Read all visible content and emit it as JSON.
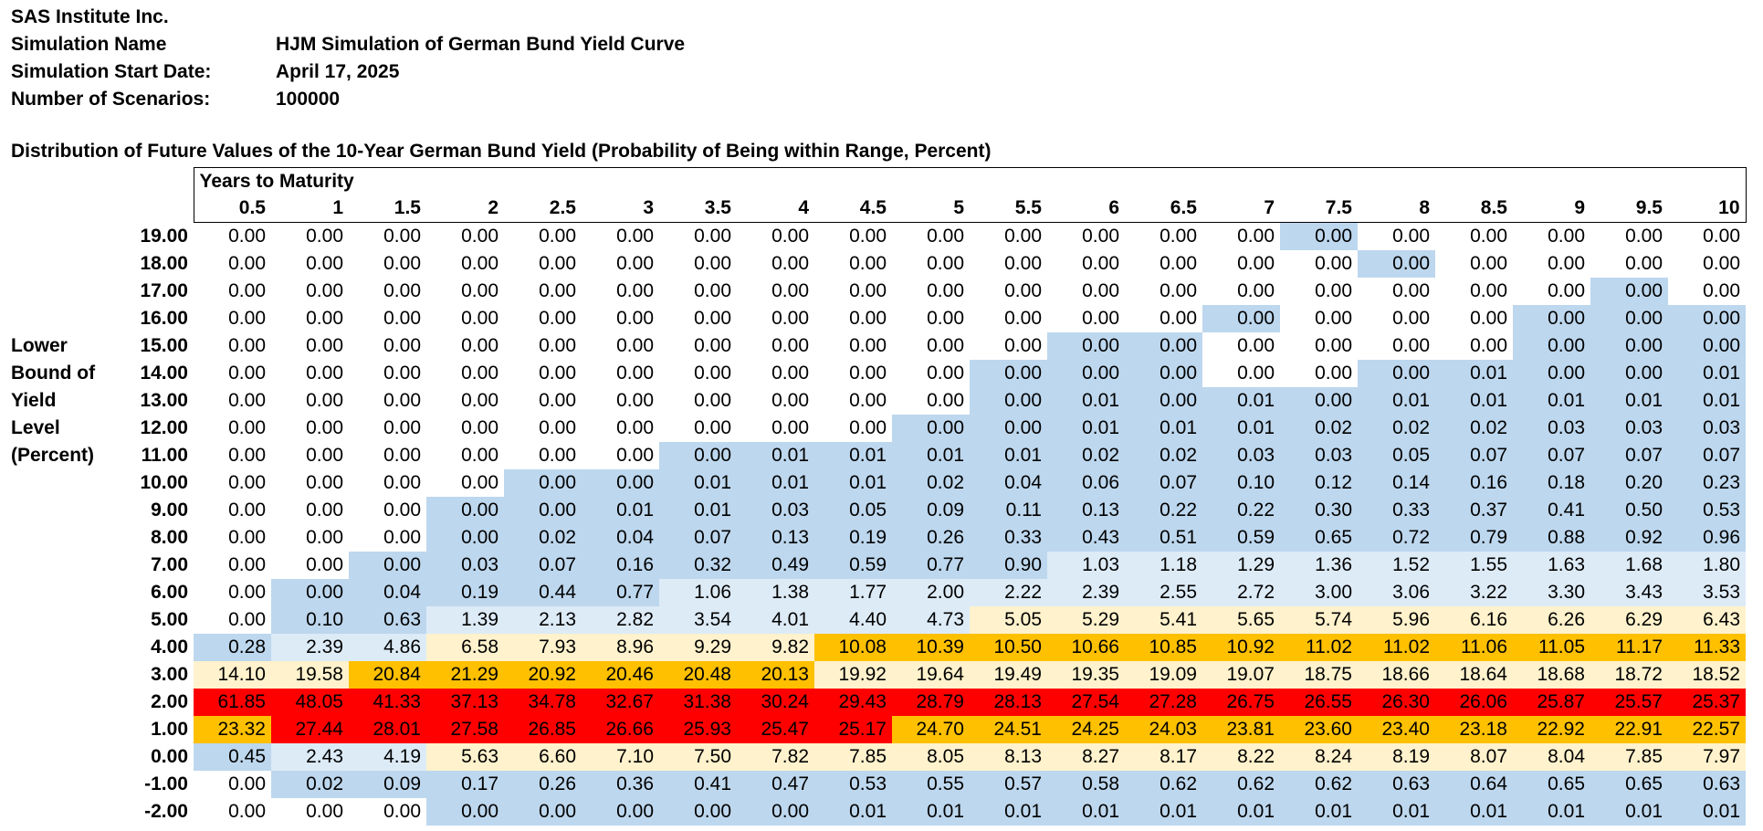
{
  "header": {
    "company": "SAS Institute Inc.",
    "fields": [
      {
        "label": "Simulation Name",
        "value": "HJM Simulation of German Bund Yield Curve"
      },
      {
        "label": "Simulation Start Date:",
        "value": "April 17, 2025"
      },
      {
        "label": "Number of Scenarios:",
        "value": "100000"
      }
    ]
  },
  "table_title": "Distribution of Future Values of the 10-Year German Bund Yield (Probability of Being within Range, Percent)",
  "column_group_label": "Years to Maturity",
  "row_axis_label": [
    "Lower",
    "Bound of",
    "Yield",
    "Level",
    "(Percent)"
  ],
  "maturities": [
    "0.5",
    "1",
    "1.5",
    "2",
    "2.5",
    "3",
    "3.5",
    "4",
    "4.5",
    "5",
    "5.5",
    "6",
    "6.5",
    "7",
    "7.5",
    "8",
    "8.5",
    "9",
    "9.5",
    "10"
  ],
  "legend_colors": {
    "c0": "#ffffff",
    "c1": "#bdd7ee",
    "c2": "#ddebf7",
    "c3": "#fff2cc",
    "c4": "#ffc000",
    "c5": "#ff0000"
  },
  "rows": [
    {
      "label": "19.00",
      "values": [
        "0.00",
        "0.00",
        "0.00",
        "0.00",
        "0.00",
        "0.00",
        "0.00",
        "0.00",
        "0.00",
        "0.00",
        "0.00",
        "0.00",
        "0.00",
        "0.00",
        "0.00",
        "0.00",
        "0.00",
        "0.00",
        "0.00",
        "0.00"
      ],
      "colors": [
        0,
        0,
        0,
        0,
        0,
        0,
        0,
        0,
        0,
        0,
        0,
        0,
        0,
        0,
        1,
        0,
        0,
        0,
        0,
        0
      ]
    },
    {
      "label": "18.00",
      "values": [
        "0.00",
        "0.00",
        "0.00",
        "0.00",
        "0.00",
        "0.00",
        "0.00",
        "0.00",
        "0.00",
        "0.00",
        "0.00",
        "0.00",
        "0.00",
        "0.00",
        "0.00",
        "0.00",
        "0.00",
        "0.00",
        "0.00",
        "0.00"
      ],
      "colors": [
        0,
        0,
        0,
        0,
        0,
        0,
        0,
        0,
        0,
        0,
        0,
        0,
        0,
        0,
        0,
        1,
        0,
        0,
        0,
        0
      ]
    },
    {
      "label": "17.00",
      "values": [
        "0.00",
        "0.00",
        "0.00",
        "0.00",
        "0.00",
        "0.00",
        "0.00",
        "0.00",
        "0.00",
        "0.00",
        "0.00",
        "0.00",
        "0.00",
        "0.00",
        "0.00",
        "0.00",
        "0.00",
        "0.00",
        "0.00",
        "0.00"
      ],
      "colors": [
        0,
        0,
        0,
        0,
        0,
        0,
        0,
        0,
        0,
        0,
        0,
        0,
        0,
        0,
        0,
        0,
        0,
        0,
        1,
        0
      ]
    },
    {
      "label": "16.00",
      "values": [
        "0.00",
        "0.00",
        "0.00",
        "0.00",
        "0.00",
        "0.00",
        "0.00",
        "0.00",
        "0.00",
        "0.00",
        "0.00",
        "0.00",
        "0.00",
        "0.00",
        "0.00",
        "0.00",
        "0.00",
        "0.00",
        "0.00",
        "0.00"
      ],
      "colors": [
        0,
        0,
        0,
        0,
        0,
        0,
        0,
        0,
        0,
        0,
        0,
        0,
        0,
        1,
        0,
        0,
        0,
        1,
        1,
        1
      ]
    },
    {
      "label": "15.00",
      "values": [
        "0.00",
        "0.00",
        "0.00",
        "0.00",
        "0.00",
        "0.00",
        "0.00",
        "0.00",
        "0.00",
        "0.00",
        "0.00",
        "0.00",
        "0.00",
        "0.00",
        "0.00",
        "0.00",
        "0.00",
        "0.00",
        "0.00",
        "0.00"
      ],
      "colors": [
        0,
        0,
        0,
        0,
        0,
        0,
        0,
        0,
        0,
        0,
        0,
        1,
        1,
        0,
        0,
        0,
        0,
        1,
        1,
        1
      ]
    },
    {
      "label": "14.00",
      "values": [
        "0.00",
        "0.00",
        "0.00",
        "0.00",
        "0.00",
        "0.00",
        "0.00",
        "0.00",
        "0.00",
        "0.00",
        "0.00",
        "0.00",
        "0.00",
        "0.00",
        "0.00",
        "0.00",
        "0.01",
        "0.00",
        "0.00",
        "0.01"
      ],
      "colors": [
        0,
        0,
        0,
        0,
        0,
        0,
        0,
        0,
        0,
        0,
        1,
        1,
        1,
        0,
        0,
        1,
        1,
        1,
        1,
        1
      ]
    },
    {
      "label": "13.00",
      "values": [
        "0.00",
        "0.00",
        "0.00",
        "0.00",
        "0.00",
        "0.00",
        "0.00",
        "0.00",
        "0.00",
        "0.00",
        "0.00",
        "0.01",
        "0.00",
        "0.01",
        "0.00",
        "0.01",
        "0.01",
        "0.01",
        "0.01",
        "0.01"
      ],
      "colors": [
        0,
        0,
        0,
        0,
        0,
        0,
        0,
        0,
        0,
        0,
        1,
        1,
        1,
        1,
        1,
        1,
        1,
        1,
        1,
        1
      ]
    },
    {
      "label": "12.00",
      "values": [
        "0.00",
        "0.00",
        "0.00",
        "0.00",
        "0.00",
        "0.00",
        "0.00",
        "0.00",
        "0.00",
        "0.00",
        "0.00",
        "0.01",
        "0.01",
        "0.01",
        "0.02",
        "0.02",
        "0.02",
        "0.03",
        "0.03",
        "0.03"
      ],
      "colors": [
        0,
        0,
        0,
        0,
        0,
        0,
        0,
        0,
        0,
        1,
        1,
        1,
        1,
        1,
        1,
        1,
        1,
        1,
        1,
        1
      ]
    },
    {
      "label": "11.00",
      "values": [
        "0.00",
        "0.00",
        "0.00",
        "0.00",
        "0.00",
        "0.00",
        "0.00",
        "0.01",
        "0.01",
        "0.01",
        "0.01",
        "0.02",
        "0.02",
        "0.03",
        "0.03",
        "0.05",
        "0.07",
        "0.07",
        "0.07",
        "0.07"
      ],
      "colors": [
        0,
        0,
        0,
        0,
        0,
        0,
        1,
        1,
        1,
        1,
        1,
        1,
        1,
        1,
        1,
        1,
        1,
        1,
        1,
        1
      ]
    },
    {
      "label": "10.00",
      "values": [
        "0.00",
        "0.00",
        "0.00",
        "0.00",
        "0.00",
        "0.00",
        "0.01",
        "0.01",
        "0.01",
        "0.02",
        "0.04",
        "0.06",
        "0.07",
        "0.10",
        "0.12",
        "0.14",
        "0.16",
        "0.18",
        "0.20",
        "0.23"
      ],
      "colors": [
        0,
        0,
        0,
        0,
        1,
        1,
        1,
        1,
        1,
        1,
        1,
        1,
        1,
        1,
        1,
        1,
        1,
        1,
        1,
        1
      ]
    },
    {
      "label": "9.00",
      "values": [
        "0.00",
        "0.00",
        "0.00",
        "0.00",
        "0.00",
        "0.01",
        "0.01",
        "0.03",
        "0.05",
        "0.09",
        "0.11",
        "0.13",
        "0.22",
        "0.22",
        "0.30",
        "0.33",
        "0.37",
        "0.41",
        "0.50",
        "0.53"
      ],
      "colors": [
        0,
        0,
        0,
        1,
        1,
        1,
        1,
        1,
        1,
        1,
        1,
        1,
        1,
        1,
        1,
        1,
        1,
        1,
        1,
        1
      ]
    },
    {
      "label": "8.00",
      "values": [
        "0.00",
        "0.00",
        "0.00",
        "0.00",
        "0.02",
        "0.04",
        "0.07",
        "0.13",
        "0.19",
        "0.26",
        "0.33",
        "0.43",
        "0.51",
        "0.59",
        "0.65",
        "0.72",
        "0.79",
        "0.88",
        "0.92",
        "0.96"
      ],
      "colors": [
        0,
        0,
        0,
        1,
        1,
        1,
        1,
        1,
        1,
        1,
        1,
        1,
        1,
        1,
        1,
        1,
        1,
        1,
        1,
        1
      ]
    },
    {
      "label": "7.00",
      "values": [
        "0.00",
        "0.00",
        "0.00",
        "0.03",
        "0.07",
        "0.16",
        "0.32",
        "0.49",
        "0.59",
        "0.77",
        "0.90",
        "1.03",
        "1.18",
        "1.29",
        "1.36",
        "1.52",
        "1.55",
        "1.63",
        "1.68",
        "1.80"
      ],
      "colors": [
        0,
        0,
        1,
        1,
        1,
        1,
        1,
        1,
        1,
        1,
        1,
        2,
        2,
        2,
        2,
        2,
        2,
        2,
        2,
        2
      ]
    },
    {
      "label": "6.00",
      "values": [
        "0.00",
        "0.00",
        "0.04",
        "0.19",
        "0.44",
        "0.77",
        "1.06",
        "1.38",
        "1.77",
        "2.00",
        "2.22",
        "2.39",
        "2.55",
        "2.72",
        "3.00",
        "3.06",
        "3.22",
        "3.30",
        "3.43",
        "3.53"
      ],
      "colors": [
        0,
        1,
        1,
        1,
        1,
        1,
        2,
        2,
        2,
        2,
        2,
        2,
        2,
        2,
        2,
        2,
        2,
        2,
        2,
        2
      ]
    },
    {
      "label": "5.00",
      "values": [
        "0.00",
        "0.10",
        "0.63",
        "1.39",
        "2.13",
        "2.82",
        "3.54",
        "4.01",
        "4.40",
        "4.73",
        "5.05",
        "5.29",
        "5.41",
        "5.65",
        "5.74",
        "5.96",
        "6.16",
        "6.26",
        "6.29",
        "6.43"
      ],
      "colors": [
        0,
        1,
        1,
        2,
        2,
        2,
        2,
        2,
        2,
        2,
        3,
        3,
        3,
        3,
        3,
        3,
        3,
        3,
        3,
        3
      ]
    },
    {
      "label": "4.00",
      "values": [
        "0.28",
        "2.39",
        "4.86",
        "6.58",
        "7.93",
        "8.96",
        "9.29",
        "9.82",
        "10.08",
        "10.39",
        "10.50",
        "10.66",
        "10.85",
        "10.92",
        "11.02",
        "11.02",
        "11.06",
        "11.05",
        "11.17",
        "11.33"
      ],
      "colors": [
        1,
        2,
        2,
        3,
        3,
        3,
        3,
        3,
        4,
        4,
        4,
        4,
        4,
        4,
        4,
        4,
        4,
        4,
        4,
        4
      ]
    },
    {
      "label": "3.00",
      "values": [
        "14.10",
        "19.58",
        "20.84",
        "21.29",
        "20.92",
        "20.46",
        "20.48",
        "20.13",
        "19.92",
        "19.64",
        "19.49",
        "19.35",
        "19.09",
        "19.07",
        "18.75",
        "18.66",
        "18.64",
        "18.68",
        "18.72",
        "18.52"
      ],
      "colors": [
        3,
        3,
        4,
        4,
        4,
        4,
        4,
        4,
        3,
        3,
        3,
        3,
        3,
        3,
        3,
        3,
        3,
        3,
        3,
        3
      ]
    },
    {
      "label": "2.00",
      "values": [
        "61.85",
        "48.05",
        "41.33",
        "37.13",
        "34.78",
        "32.67",
        "31.38",
        "30.24",
        "29.43",
        "28.79",
        "28.13",
        "27.54",
        "27.28",
        "26.75",
        "26.55",
        "26.30",
        "26.06",
        "25.87",
        "25.57",
        "25.37"
      ],
      "colors": [
        5,
        5,
        5,
        5,
        5,
        5,
        5,
        5,
        5,
        5,
        5,
        5,
        5,
        5,
        5,
        5,
        5,
        5,
        5,
        5
      ]
    },
    {
      "label": "1.00",
      "values": [
        "23.32",
        "27.44",
        "28.01",
        "27.58",
        "26.85",
        "26.66",
        "25.93",
        "25.47",
        "25.17",
        "24.70",
        "24.51",
        "24.25",
        "24.03",
        "23.81",
        "23.60",
        "23.40",
        "23.18",
        "22.92",
        "22.91",
        "22.57"
      ],
      "colors": [
        4,
        5,
        5,
        5,
        5,
        5,
        5,
        5,
        5,
        4,
        4,
        4,
        4,
        4,
        4,
        4,
        4,
        4,
        4,
        4
      ]
    },
    {
      "label": "0.00",
      "values": [
        "0.45",
        "2.43",
        "4.19",
        "5.63",
        "6.60",
        "7.10",
        "7.50",
        "7.82",
        "7.85",
        "8.05",
        "8.13",
        "8.27",
        "8.17",
        "8.22",
        "8.24",
        "8.19",
        "8.07",
        "8.04",
        "7.85",
        "7.97"
      ],
      "colors": [
        1,
        2,
        2,
        3,
        3,
        3,
        3,
        3,
        3,
        3,
        3,
        3,
        3,
        3,
        3,
        3,
        3,
        3,
        3,
        3
      ]
    },
    {
      "label": "-1.00",
      "values": [
        "0.00",
        "0.02",
        "0.09",
        "0.17",
        "0.26",
        "0.36",
        "0.41",
        "0.47",
        "0.53",
        "0.55",
        "0.57",
        "0.58",
        "0.62",
        "0.62",
        "0.62",
        "0.63",
        "0.64",
        "0.65",
        "0.65",
        "0.63"
      ],
      "colors": [
        0,
        1,
        1,
        1,
        1,
        1,
        1,
        1,
        1,
        1,
        1,
        1,
        1,
        1,
        1,
        1,
        1,
        1,
        1,
        1
      ]
    },
    {
      "label": "-2.00",
      "values": [
        "0.00",
        "0.00",
        "0.00",
        "0.00",
        "0.00",
        "0.00",
        "0.00",
        "0.00",
        "0.01",
        "0.01",
        "0.01",
        "0.01",
        "0.01",
        "0.01",
        "0.01",
        "0.01",
        "0.01",
        "0.01",
        "0.01",
        "0.01"
      ],
      "colors": [
        0,
        0,
        0,
        1,
        1,
        1,
        1,
        1,
        1,
        1,
        1,
        1,
        1,
        1,
        1,
        1,
        1,
        1,
        1,
        1
      ]
    }
  ]
}
